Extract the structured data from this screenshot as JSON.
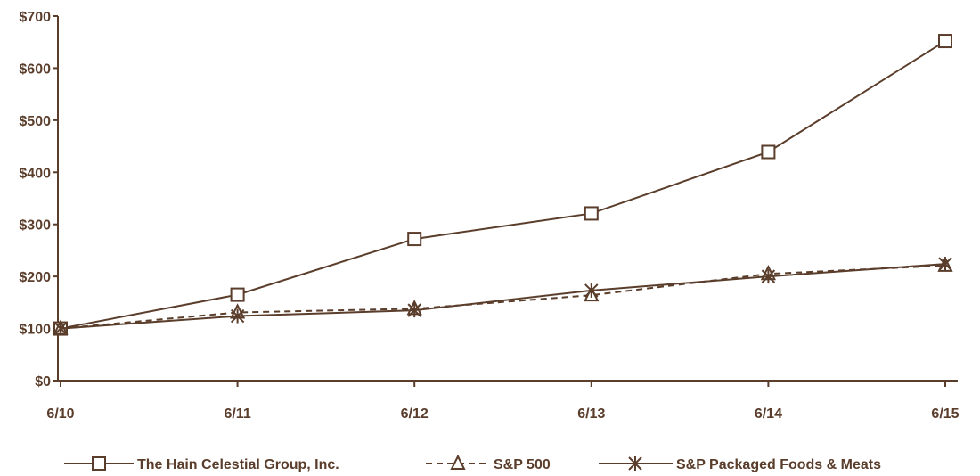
{
  "chart_data": {
    "type": "line",
    "x": [
      "6/10",
      "6/11",
      "6/12",
      "6/13",
      "6/14",
      "6/15"
    ],
    "ylim": [
      0,
      700
    ],
    "yticks": [
      0,
      100,
      200,
      300,
      400,
      500,
      600,
      700
    ],
    "ytick_labels": [
      "$0",
      "$100",
      "$200",
      "$300",
      "$400",
      "$500",
      "$600",
      "$700"
    ],
    "grid": false,
    "legend_position": "bottom",
    "line_color": "#5a3d2b",
    "series": [
      {
        "name": "The Hain Celestial Group, Inc.",
        "marker": "square",
        "style": "solid",
        "values": [
          100,
          165,
          272,
          321,
          439,
          652
        ]
      },
      {
        "name": "S&P 500",
        "marker": "triangle",
        "style": "dashed",
        "values": [
          100,
          131,
          138,
          164,
          205,
          221
        ]
      },
      {
        "name": "S&P Packaged Foods & Meats",
        "marker": "asterisk",
        "style": "solid",
        "values": [
          100,
          124,
          135,
          173,
          200,
          224
        ]
      }
    ]
  }
}
